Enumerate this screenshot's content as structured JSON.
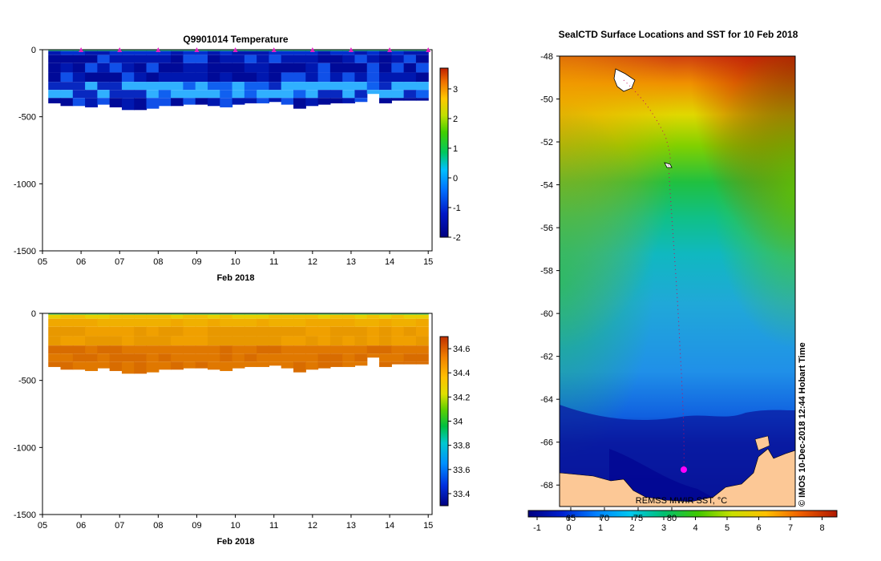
{
  "chart_data": [
    {
      "type": "heatmap",
      "title": "Q9901014  Temperature",
      "xlabel": "Feb 2018",
      "x_ticks": [
        "05",
        "06",
        "07",
        "08",
        "09",
        "10",
        "11",
        "12",
        "13",
        "14",
        "15"
      ],
      "xlim": [
        5,
        15.1
      ],
      "y_ticks": [
        "0",
        "-500",
        "-1000",
        "-1500"
      ],
      "ylim": [
        -1500,
        0
      ],
      "profile_depths": [
        400,
        420,
        420,
        430,
        410,
        430,
        450,
        450,
        440,
        420,
        420,
        410,
        410,
        420,
        430,
        410,
        400,
        400,
        390,
        410,
        440,
        420,
        410,
        400,
        400,
        390,
        330,
        400,
        380,
        380,
        380
      ],
      "colorbar": {
        "ticks": [
          "3",
          "2",
          "1",
          "0",
          "-1",
          "-2"
        ],
        "min": -2,
        "max": 3.7
      },
      "profile_markers_days": [
        6,
        7,
        8,
        9,
        10,
        11,
        12,
        13,
        14,
        15
      ]
    },
    {
      "type": "heatmap",
      "title": "",
      "xlabel": "Feb 2018",
      "x_ticks": [
        "05",
        "06",
        "07",
        "08",
        "09",
        "10",
        "11",
        "12",
        "13",
        "14",
        "15"
      ],
      "xlim": [
        5,
        15.1
      ],
      "y_ticks": [
        "0",
        "-500",
        "-1000",
        "-1500"
      ],
      "ylim": [
        -1500,
        0
      ],
      "colorbar": {
        "ticks": [
          "34.6",
          "34.4",
          "34.2",
          "34",
          "33.8",
          "33.6",
          "33.4"
        ],
        "min": 33.3,
        "max": 34.7
      }
    },
    {
      "type": "heatmap",
      "title": "SealCTD Surface Locations and SST for 10 Feb 2018",
      "y_ticks": [
        "-48",
        "-50",
        "-52",
        "-54",
        "-56",
        "-58",
        "-60",
        "-62",
        "-64",
        "-66",
        "-68"
      ],
      "ylim": [
        -69,
        -48
      ],
      "colorbar": {
        "celsius_ticks": [
          "-1",
          "0",
          "1",
          "2",
          "3",
          "4",
          "5",
          "6",
          "7",
          "8"
        ],
        "fahrenheit_ticks": [
          "65",
          "70",
          "75",
          "80"
        ]
      },
      "source_label": "REMSS MWIR SST, °C",
      "credit": "© IMOS 10-Dec-2018 12:44 Hobart Time"
    }
  ]
}
